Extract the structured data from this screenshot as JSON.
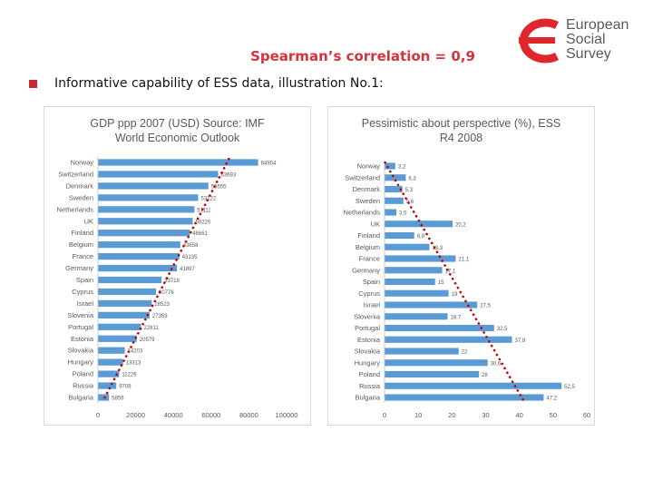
{
  "logo": {
    "line1": "European",
    "line2": "Social",
    "line3": "Survey",
    "brand_color": "#e0262c"
  },
  "headline": "Spearman’s correlation = 0,9",
  "bullet": "Informative capability of ESS data, illustration No.1:",
  "colors": {
    "bar": "#5b9bd5",
    "trend": "#c00000",
    "text": "#595959"
  },
  "chart_data": [
    {
      "type": "bar",
      "orientation": "horizontal",
      "title_lines": [
        "GDP ppp 2007 (USD) Source: IMF",
        "World Economic Outlook"
      ],
      "categories": [
        "Norway",
        "Switzerland",
        "Denmark",
        "Sweden",
        "Netherlands",
        "UK",
        "Finland",
        "Belgium",
        "France",
        "Germany",
        "Spain",
        "Cyprus",
        "Israel",
        "Slovenia",
        "Portugal",
        "Estonia",
        "Slovakia",
        "Hungary",
        "Poland",
        "Russia",
        "Bulgaria"
      ],
      "values": [
        84904,
        63693,
        58555,
        53122,
        51111,
        50220,
        48661,
        43658,
        43135,
        41897,
        33718,
        30776,
        28523,
        27359,
        22811,
        20579,
        14203,
        13313,
        11226,
        9708,
        5859
      ],
      "data_labels": [
        "84904",
        "63693",
        "58555",
        "53122",
        "51111",
        "50220",
        "48661",
        "43658",
        "43135",
        "41897",
        "33718",
        "30776",
        "28523",
        "27359",
        "22811",
        "20579",
        "14203",
        "13313",
        "11226",
        "9708",
        "5859"
      ],
      "xlim": [
        0,
        100000
      ],
      "xticks": [
        "0",
        "20000",
        "40000",
        "60000",
        "80000",
        "100000"
      ],
      "trendline": "dotted",
      "grid": false
    },
    {
      "type": "bar",
      "orientation": "horizontal",
      "title_lines": [
        "Pessimistic about perspective (%), ESS",
        "R4 2008"
      ],
      "categories": [
        "Norway",
        "Switzerland",
        "Denmark",
        "Sweden",
        "Netherlands",
        "UK",
        "Finland",
        "Belgium",
        "France",
        "Germany",
        "Spain",
        "Cyprus",
        "Israel",
        "Slovenia",
        "Portugal",
        "Estonia",
        "Slovakia",
        "Hungary",
        "Poland",
        "Russia",
        "Bulgaria"
      ],
      "values": [
        3.2,
        6.3,
        5.3,
        5.6,
        3.5,
        20.2,
        8.8,
        13.3,
        21.1,
        17.1,
        15,
        19,
        27.5,
        18.7,
        32.5,
        37.8,
        22,
        30.6,
        28,
        52.5,
        47.2
      ],
      "data_labels": [
        "3,2",
        "6,3",
        "5,3",
        "5,6",
        "3,5",
        "20,2",
        "8,8",
        "13,3",
        "21,1",
        "17,1",
        "15",
        "19",
        "27,5",
        "18,7",
        "32,5",
        "37,8",
        "22",
        "30,6",
        "28",
        "52,5",
        "47,2"
      ],
      "xlim": [
        0,
        60
      ],
      "xticks": [
        "0",
        "10",
        "20",
        "30",
        "40",
        "50",
        "60"
      ],
      "trendline": "dotted",
      "grid": false
    }
  ]
}
